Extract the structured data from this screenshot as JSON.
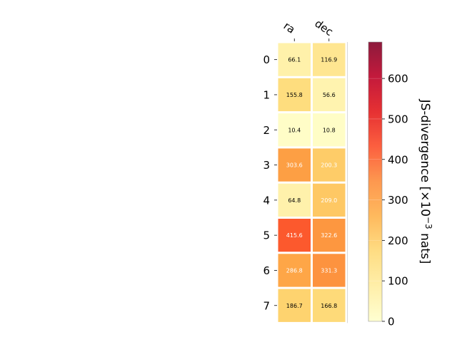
{
  "chart_data": {
    "type": "heatmap",
    "columns": [
      "ra",
      "dec"
    ],
    "rows": [
      "0",
      "1",
      "2",
      "3",
      "4",
      "5",
      "6",
      "7"
    ],
    "values": [
      [
        66.1,
        116.9
      ],
      [
        155.8,
        56.6
      ],
      [
        10.4,
        10.8
      ],
      [
        303.6,
        200.3
      ],
      [
        64.8,
        209.0
      ],
      [
        415.6,
        322.6
      ],
      [
        286.8,
        331.3
      ],
      [
        186.7,
        166.8
      ]
    ],
    "value_labels": [
      [
        "66.1",
        "116.9"
      ],
      [
        "155.8",
        "56.6"
      ],
      [
        "10.4",
        "10.8"
      ],
      [
        "303.6",
        "200.3"
      ],
      [
        "64.8",
        "209.0"
      ],
      [
        "415.6",
        "322.6"
      ],
      [
        "286.8",
        "331.3"
      ],
      [
        "186.7",
        "166.8"
      ]
    ],
    "colormap": "YlOrRd",
    "colorbar": {
      "label": "JS-divergence [×10",
      "label_exponent": "−3",
      "label_suffix": " nats]",
      "range": [
        0,
        690
      ],
      "ticks": [
        "0",
        "100",
        "200",
        "300",
        "400",
        "500",
        "600"
      ],
      "tick_values": [
        0,
        100,
        200,
        300,
        400,
        500,
        600
      ]
    },
    "grid": false
  }
}
